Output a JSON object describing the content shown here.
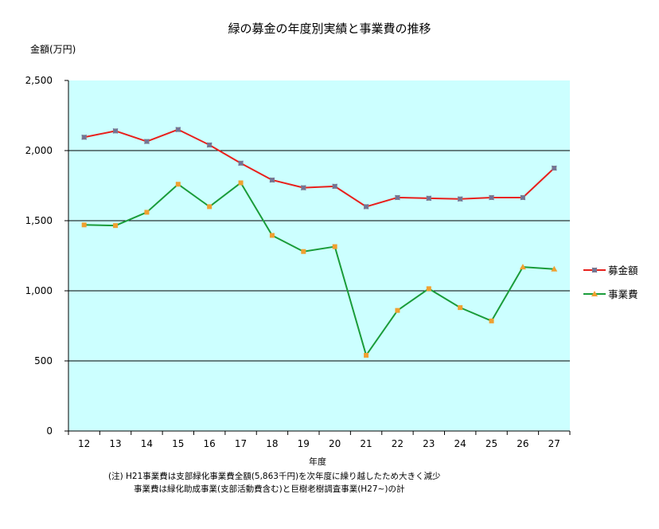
{
  "chart_data": {
    "type": "line",
    "title": "緑の募金の年度別実績と事業費の推移",
    "ylabel": "金額(万円)",
    "xlabel": "年度",
    "categories": [
      "12",
      "13",
      "14",
      "15",
      "16",
      "17",
      "18",
      "19",
      "20",
      "21",
      "22",
      "23",
      "24",
      "25",
      "26",
      "27"
    ],
    "series": [
      {
        "name": "募金額",
        "color": "#e8201c",
        "marker_color": "#808080",
        "marker": "x-square",
        "values": [
          2095,
          2140,
          2065,
          2150,
          2040,
          1910,
          1790,
          1735,
          1745,
          1600,
          1665,
          1660,
          1655,
          1665,
          1665,
          1875
        ]
      },
      {
        "name": "事業費",
        "color": "#1a9c3a",
        "marker_color": "#f0a030",
        "marker": "square-triangle",
        "values": [
          1470,
          1465,
          1560,
          1760,
          1600,
          1770,
          1395,
          1280,
          1315,
          540,
          860,
          1015,
          880,
          785,
          1170,
          1155
        ]
      }
    ],
    "ylim": [
      0,
      2500
    ],
    "yticks": [
      0,
      500,
      1000,
      1500,
      2000,
      2500
    ],
    "ytick_labels": [
      "0",
      "500",
      "1,000",
      "1,500",
      "2,000",
      "2,500"
    ],
    "grid": true,
    "plot_background": "#ccffff",
    "legend_position": "right",
    "notes": [
      "(注) H21事業費は支部緑化事業費全額(5,863千円)を次年度に繰り越したため大きく減少",
      "事業費は緑化助成事業(支部活動費含む)と巨樹老樹調査事業(H27~)の計"
    ]
  }
}
